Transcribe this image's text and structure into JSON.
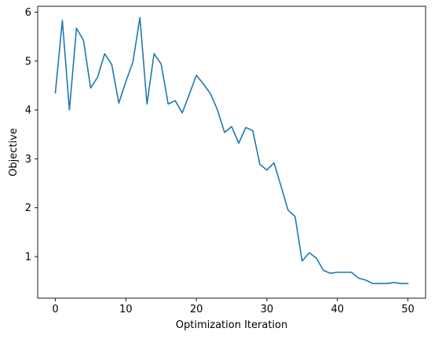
{
  "chart_data": {
    "type": "line",
    "title": "",
    "xlabel": "Optimization Iteration",
    "ylabel": "Objective",
    "xlim": [
      -2.5,
      52.5
    ],
    "ylim": [
      0.15,
      6.12
    ],
    "xticks": [
      0,
      10,
      20,
      30,
      40,
      50
    ],
    "yticks": [
      1,
      2,
      3,
      4,
      5,
      6
    ],
    "xtick_labels": [
      "0",
      "10",
      "20",
      "30",
      "40",
      "50"
    ],
    "ytick_labels": [
      "1",
      "2",
      "3",
      "4",
      "5",
      "6"
    ],
    "grid": false,
    "legend": "none",
    "series": [
      {
        "color": "#1f77b4",
        "x": [
          0,
          1,
          2,
          3,
          4,
          5,
          6,
          7,
          8,
          9,
          10,
          11,
          12,
          13,
          14,
          15,
          16,
          17,
          18,
          19,
          20,
          21,
          22,
          23,
          24,
          25,
          26,
          27,
          28,
          29,
          30,
          31,
          32,
          33,
          34,
          35,
          36,
          37,
          38,
          39,
          40,
          41,
          42,
          43,
          44,
          45,
          46,
          47,
          48,
          49,
          50
        ],
        "y": [
          4.35,
          5.83,
          4.0,
          5.67,
          5.42,
          4.45,
          4.67,
          5.15,
          4.93,
          4.14,
          4.58,
          4.98,
          5.89,
          4.12,
          5.15,
          4.94,
          4.12,
          4.19,
          3.94,
          4.32,
          4.71,
          4.53,
          4.33,
          4.0,
          3.54,
          3.66,
          3.32,
          3.64,
          3.58,
          2.89,
          2.77,
          2.92,
          2.44,
          1.95,
          1.82,
          0.91,
          1.08,
          0.97,
          0.72,
          0.66,
          0.68,
          0.68,
          0.68,
          0.56,
          0.52,
          0.45,
          0.45,
          0.45,
          0.47,
          0.45,
          0.45
        ]
      }
    ]
  }
}
